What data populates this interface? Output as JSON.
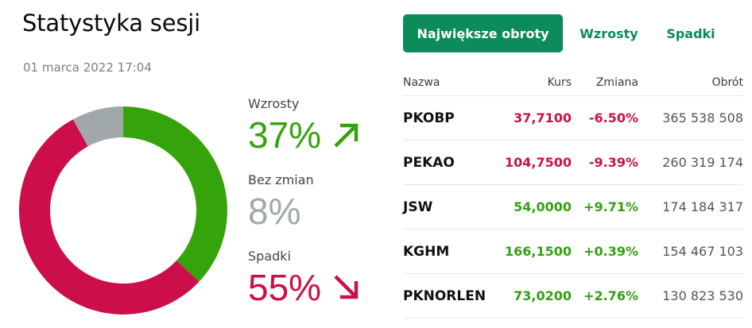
{
  "header": {
    "title": "Statystyka sesji",
    "date": "01 marca 2022 17:04"
  },
  "stats": {
    "up": {
      "label": "Wzrosty",
      "value": "37%",
      "icon": "arrow-up-right-icon",
      "color": "#35a40c"
    },
    "flat": {
      "label": "Bez zmian",
      "value": "8%",
      "color": "#a1a8ab"
    },
    "down": {
      "label": "Spadki",
      "value": "55%",
      "icon": "arrow-down-right-icon",
      "color": "#cc0f4b"
    }
  },
  "tabs": [
    {
      "label": "Największe obroty",
      "active": true
    },
    {
      "label": "Wzrosty",
      "active": false
    },
    {
      "label": "Spadki",
      "active": false
    }
  ],
  "table": {
    "headers": [
      "Nazwa",
      "Kurs",
      "Zmiana",
      "Obrót"
    ],
    "rows": [
      {
        "name": "PKOBP",
        "price": "37,7100",
        "change": "-6.50%",
        "volume": "365 538 508",
        "dir": "neg"
      },
      {
        "name": "PEKAO",
        "price": "104,7500",
        "change": "-9.39%",
        "volume": "260 319 174",
        "dir": "neg"
      },
      {
        "name": "JSW",
        "price": "54,0000",
        "change": "+9.71%",
        "volume": "174 184 317",
        "dir": "pos"
      },
      {
        "name": "KGHM",
        "price": "166,1500",
        "change": "+0.39%",
        "volume": "154 467 103",
        "dir": "pos"
      },
      {
        "name": "PKNORLEN",
        "price": "73,0200",
        "change": "+2.76%",
        "volume": "130 823 530",
        "dir": "pos"
      }
    ]
  },
  "colors": {
    "accent": "#0b8c5a",
    "positive": "#35a40c",
    "negative": "#cc0f4b",
    "neutral": "#a1a8ab"
  },
  "chart_data": {
    "type": "pie",
    "title": "Statystyka sesji",
    "subtitle": "01 marca 2022 17:04",
    "donut": true,
    "categories": [
      "Wzrosty",
      "Spadki",
      "Bez zmian"
    ],
    "values": [
      37,
      55,
      8
    ],
    "colors": [
      "#35a40c",
      "#cc0f4b",
      "#a1a8ab"
    ],
    "start_angle_deg": 0,
    "direction": "clockwise",
    "legend_position": "right"
  }
}
